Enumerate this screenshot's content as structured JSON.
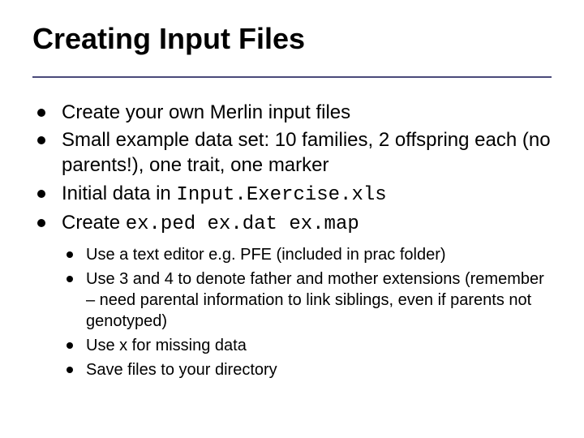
{
  "title": "Creating Input Files",
  "title_color": "#000000",
  "rule_color": "#4a4a7a",
  "body_color": "#000000",
  "bullet_color": "#000000",
  "background_color": "#ffffff",
  "mono_font": "Courier New",
  "points": [
    {
      "text": "Create your own Merlin input files"
    },
    {
      "text": "Small example data set: 10 families, 2 offspring each (no parents!), one trait, one marker"
    },
    {
      "prefix": "Initial data in ",
      "code": "Input.Exercise.xls"
    },
    {
      "prefix": "Create ",
      "code": "ex.ped ex.dat ex.map"
    }
  ],
  "subpoints": [
    "Use a text editor e.g. PFE (included in prac folder)",
    "Use 3 and 4 to denote father and mother extensions (remember – need parental information to link siblings, even if parents not genotyped)",
    "Use x for missing data",
    "Save files to your directory"
  ],
  "fontsizes": {
    "title": 36,
    "main": 24,
    "sub": 20
  }
}
